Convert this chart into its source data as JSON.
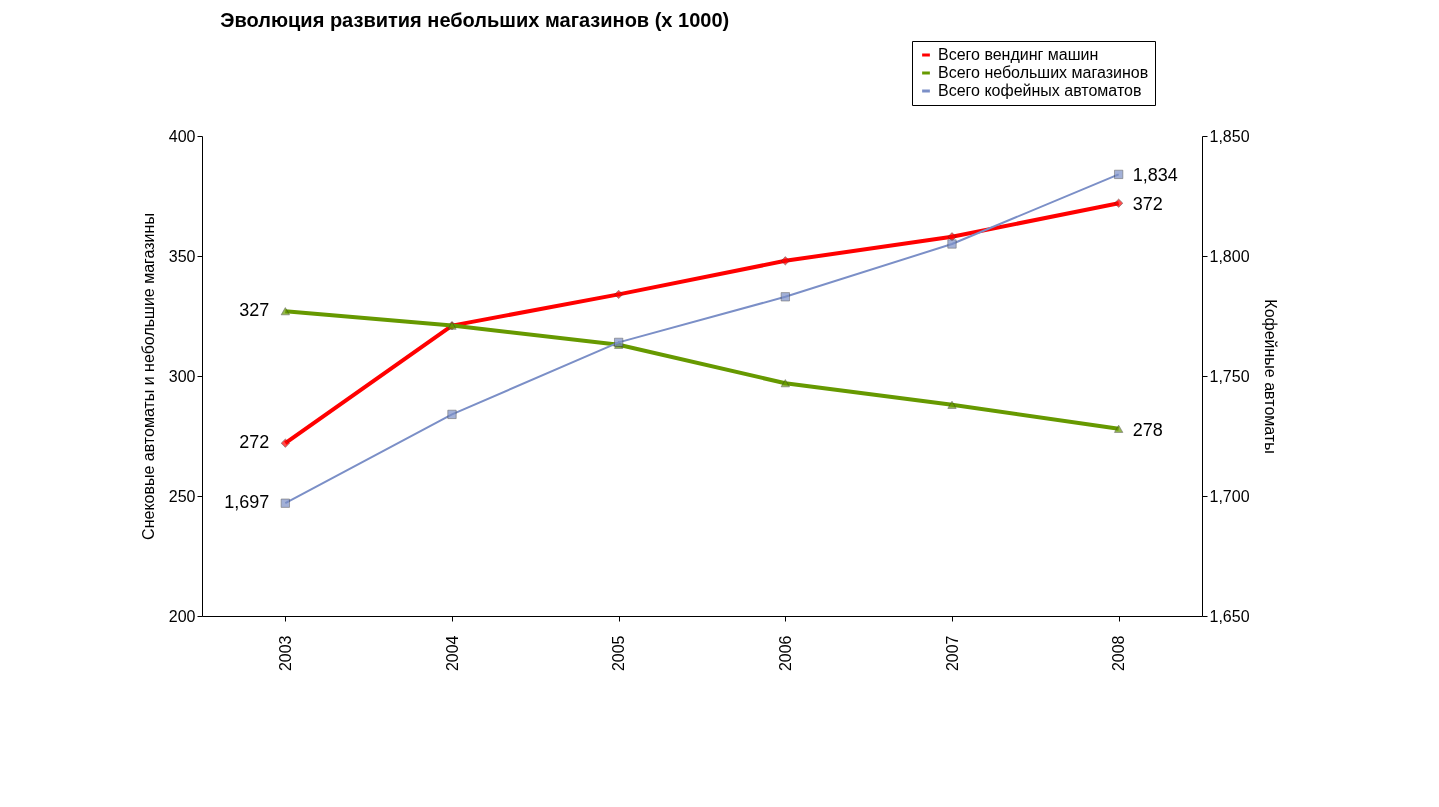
{
  "chart_data": {
    "type": "line",
    "title": "Эволюция развития небольших  магазинов (x 1000)",
    "ylabel": "Снековые автоматы и небольшие магазины",
    "y2label": "Кофейные автоматы",
    "categories": [
      "2003",
      "2004",
      "2005",
      "2006",
      "2007",
      "2008"
    ],
    "series": [
      {
        "name": "Всего вендинг машин",
        "color": "#ff0000",
        "marker": "diamond",
        "values": [
          272,
          321,
          334,
          348,
          358,
          372
        ],
        "value_labels": [
          "272",
          null,
          null,
          null,
          null,
          "372"
        ]
      },
      {
        "name": "Всего небольших магазинов",
        "color": "#669900",
        "marker": "triangle",
        "values": [
          327,
          321,
          313,
          297,
          288,
          278
        ],
        "value_labels": [
          "327",
          null,
          null,
          null,
          null,
          "278"
        ]
      },
      {
        "name": "Всего кофейных автоматов",
        "color": "#7b8fc7",
        "marker": "square",
        "axis": "y2",
        "values": [
          1697,
          1734,
          1764,
          1783,
          1805,
          1834
        ],
        "value_labels": [
          "1,697",
          null,
          null,
          null,
          null,
          "1,834"
        ]
      }
    ],
    "ylim": [
      200,
      400
    ],
    "yticks": [
      200,
      250,
      300,
      350,
      400
    ],
    "y2lim": [
      1650,
      1850
    ],
    "y2ticks": [
      {
        "value": 1650,
        "label": "1,650"
      },
      {
        "value": 1700,
        "label": "1,700"
      },
      {
        "value": 1750,
        "label": "1,750"
      },
      {
        "value": 1800,
        "label": "1,800"
      },
      {
        "value": 1850,
        "label": "1,850"
      }
    ],
    "grid": false,
    "legend": "top right"
  }
}
